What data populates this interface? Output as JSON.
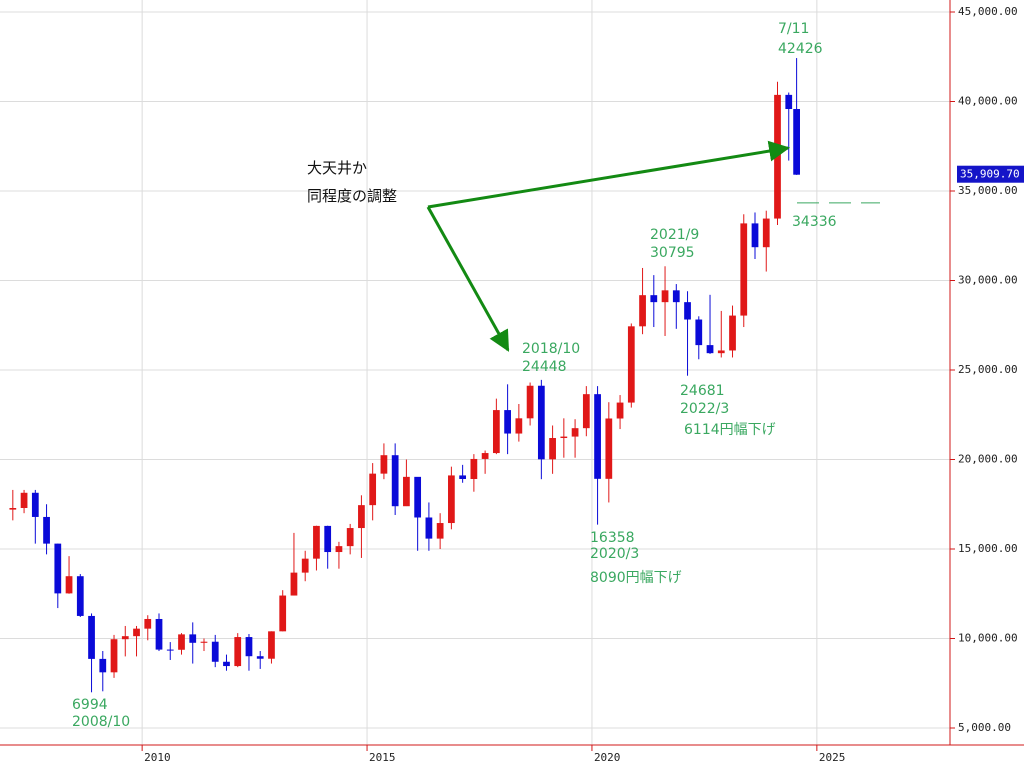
{
  "chart_data": {
    "type": "candlestick",
    "x": [
      2007.125,
      2007.375,
      2007.625,
      2007.875,
      2008.125,
      2008.375,
      2008.625,
      2008.875,
      2009.125,
      2009.375,
      2009.625,
      2009.875,
      2010.125,
      2010.375,
      2010.625,
      2010.875,
      2011.125,
      2011.375,
      2011.625,
      2011.875,
      2012.125,
      2012.375,
      2012.625,
      2012.875,
      2013.125,
      2013.375,
      2013.625,
      2013.875,
      2014.125,
      2014.375,
      2014.625,
      2014.875,
      2015.125,
      2015.375,
      2015.625,
      2015.875,
      2016.125,
      2016.375,
      2016.625,
      2016.875,
      2017.125,
      2017.375,
      2017.625,
      2017.875,
      2018.125,
      2018.375,
      2018.625,
      2018.875,
      2019.125,
      2019.375,
      2019.625,
      2019.875,
      2020.125,
      2020.375,
      2020.625,
      2020.875,
      2021.125,
      2021.375,
      2021.625,
      2021.875,
      2022.125,
      2022.375,
      2022.625,
      2022.875,
      2023.125,
      2023.375,
      2023.625,
      2023.875,
      2024.125,
      2024.375,
      2024.55
    ],
    "open": [
      17200,
      17290,
      18140,
      16790,
      15300,
      12520,
      13480,
      11260,
      8860,
      8110,
      9960,
      10130,
      10550,
      11090,
      9380,
      9370,
      10230,
      9760,
      9820,
      8700,
      8460,
      10080,
      9010,
      8870,
      10400,
      12400,
      13680,
      14460,
      16290,
      14830,
      15160,
      16170,
      17450,
      19210,
      20240,
      17390,
      19030,
      16760,
      15580,
      16450,
      19110,
      18910,
      20030,
      20360,
      22760,
      21450,
      22300,
      24120,
      20010,
      21200,
      21280,
      21750,
      23650,
      18920,
      22290,
      23180,
      27440,
      29180,
      28790,
      29450,
      28790,
      27820,
      26390,
      25940,
      26090,
      28040,
      33190,
      31860,
      33460,
      40370,
      39580
    ],
    "high": [
      18300,
      18300,
      18300,
      17500,
      15300,
      14600,
      13600,
      11400,
      9300,
      10200,
      10700,
      10700,
      11300,
      11400,
      9800,
      10300,
      10900,
      10000,
      10200,
      9100,
      10300,
      10250,
      9300,
      10400,
      12700,
      15900,
      14900,
      16300,
      16300,
      15400,
      16400,
      18000,
      19800,
      20900,
      20900,
      20000,
      19000,
      17600,
      17000,
      19600,
      19700,
      20300,
      20500,
      23400,
      24200,
      23100,
      24300,
      24448,
      21900,
      22300,
      22250,
      24100,
      24100,
      23200,
      23600,
      27600,
      30700,
      30300,
      30795,
      29800,
      29400,
      28000,
      29200,
      28300,
      28600,
      33700,
      33800,
      33900,
      41100,
      40500,
      42426
    ],
    "low": [
      16600,
      17000,
      15300,
      14700,
      11700,
      12500,
      11200,
      6994,
      7050,
      7800,
      9000,
      9000,
      9900,
      9300,
      8800,
      9100,
      8600,
      9300,
      8400,
      8200,
      8400,
      8200,
      8300,
      8600,
      10400,
      12400,
      13200,
      13800,
      13900,
      13900,
      14700,
      14500,
      16600,
      18900,
      16900,
      17400,
      14900,
      14900,
      15000,
      16100,
      18700,
      18200,
      19200,
      20300,
      20300,
      21000,
      21900,
      18900,
      19200,
      20100,
      20100,
      21300,
      16358,
      17600,
      21700,
      22900,
      27000,
      27400,
      26900,
      27300,
      24681,
      25600,
      25900,
      25700,
      25700,
      27400,
      31200,
      30500,
      33100,
      36700,
      35900
    ],
    "close": [
      17290,
      18140,
      16790,
      15300,
      12520,
      13480,
      11260,
      8860,
      8110,
      9960,
      10130,
      10550,
      11090,
      9380,
      9370,
      10230,
      9760,
      9820,
      8700,
      8460,
      10080,
      9010,
      8870,
      10400,
      12400,
      13680,
      14460,
      16290,
      14830,
      15160,
      16170,
      17450,
      19210,
      20240,
      17390,
      19030,
      16760,
      15580,
      16450,
      19110,
      18910,
      20030,
      20360,
      22760,
      21450,
      22300,
      24120,
      20010,
      21200,
      21280,
      21750,
      23650,
      18920,
      22290,
      23180,
      27440,
      29180,
      28790,
      29450,
      28790,
      27820,
      26390,
      25940,
      26090,
      28040,
      33190,
      31860,
      33460,
      40370,
      39580,
      35909.7
    ],
    "up_color": "#e01818",
    "down_color": "#0a0ad8",
    "xlim": [
      2006.84,
      2027.96
    ],
    "ylim": [
      4050,
      45670
    ],
    "xticks": [
      2010,
      2015,
      2020,
      2025
    ],
    "yticks": [
      {
        "value": 5000,
        "label": "5,000.00"
      },
      {
        "value": 10000,
        "label": "10,000.00"
      },
      {
        "value": 15000,
        "label": "15,000.00"
      },
      {
        "value": 20000,
        "label": "20,000.00"
      },
      {
        "value": 25000,
        "label": "25,000.00"
      },
      {
        "value": 30000,
        "label": "30,000.00"
      },
      {
        "value": 35000,
        "label": "35,000.00"
      },
      {
        "value": 40000,
        "label": "40,000.00"
      },
      {
        "value": 45000,
        "label": "45,000.00"
      }
    ],
    "grid": true,
    "current_price": {
      "value": 35909.7,
      "label": "35,909.70"
    },
    "support_level": 34336,
    "annotations": [
      [
        "7/11",
        "42426"
      ],
      [
        "2021/9",
        "30795"
      ],
      [
        "2018/10",
        "24448"
      ],
      [
        "24681",
        "2022/3",
        "6114円幅下げ"
      ],
      [
        "16358",
        "2020/3",
        "8090円幅下げ"
      ],
      [
        "6994",
        "2008/10"
      ]
    ],
    "note": [
      "大天井か",
      "同程度の調整"
    ]
  }
}
